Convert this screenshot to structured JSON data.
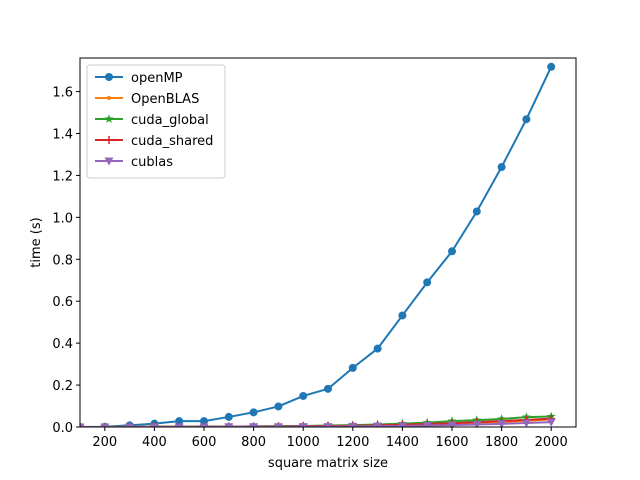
{
  "chart_data": {
    "type": "line",
    "xlabel": "square matrix size",
    "ylabel": "time (s)",
    "xlim": [
      100,
      2100
    ],
    "ylim": [
      0,
      1.76
    ],
    "xticks": [
      200,
      400,
      600,
      800,
      1000,
      1200,
      1400,
      1600,
      1800,
      2000
    ],
    "yticks": [
      0.0,
      0.2,
      0.4,
      0.6,
      0.8,
      1.0,
      1.2,
      1.4,
      1.6
    ],
    "ytick_labels": [
      "0.0",
      "0.2",
      "0.4",
      "0.6",
      "0.8",
      "1.0",
      "1.2",
      "1.4",
      "1.6"
    ],
    "grid": false,
    "legend_position": "top-left",
    "x": [
      100,
      200,
      300,
      400,
      500,
      600,
      700,
      800,
      900,
      1000,
      1100,
      1200,
      1300,
      1400,
      1500,
      1600,
      1700,
      1800,
      1900,
      2000
    ],
    "series": [
      {
        "name": "openMP",
        "color": "#1f77b4",
        "marker": "circle",
        "values": [
          0.0,
          0.001,
          0.008,
          0.016,
          0.028,
          0.028,
          0.048,
          0.07,
          0.098,
          0.148,
          0.182,
          0.282,
          0.374,
          0.532,
          0.69,
          0.838,
          1.028,
          1.24,
          1.468,
          1.718
        ]
      },
      {
        "name": "OpenBLAS",
        "color": "#ff7f0e",
        "marker": "point",
        "values": [
          0.0,
          0.0,
          0.001,
          0.001,
          0.001,
          0.002,
          0.002,
          0.003,
          0.003,
          0.004,
          0.005,
          0.006,
          0.008,
          0.01,
          0.013,
          0.016,
          0.02,
          0.024,
          0.03,
          0.036
        ]
      },
      {
        "name": "cuda_global",
        "color": "#2ca02c",
        "marker": "star",
        "values": [
          0.0,
          0.0,
          0.0,
          0.001,
          0.001,
          0.002,
          0.002,
          0.003,
          0.004,
          0.005,
          0.007,
          0.009,
          0.012,
          0.016,
          0.021,
          0.028,
          0.033,
          0.038,
          0.047,
          0.05
        ]
      },
      {
        "name": "cuda_shared",
        "color": "#d62728",
        "marker": "plus",
        "values": [
          0.0,
          0.0,
          0.0,
          0.001,
          0.001,
          0.001,
          0.002,
          0.002,
          0.003,
          0.004,
          0.005,
          0.006,
          0.008,
          0.011,
          0.014,
          0.018,
          0.023,
          0.028,
          0.034,
          0.04
        ]
      },
      {
        "name": "cublas",
        "color": "#9467bd",
        "marker": "triangle-down",
        "values": [
          0.0,
          0.0,
          0.0,
          0.0,
          0.0,
          0.0,
          0.001,
          0.001,
          0.001,
          0.002,
          0.002,
          0.003,
          0.004,
          0.005,
          0.007,
          0.009,
          0.012,
          0.015,
          0.019,
          0.023
        ]
      }
    ]
  }
}
